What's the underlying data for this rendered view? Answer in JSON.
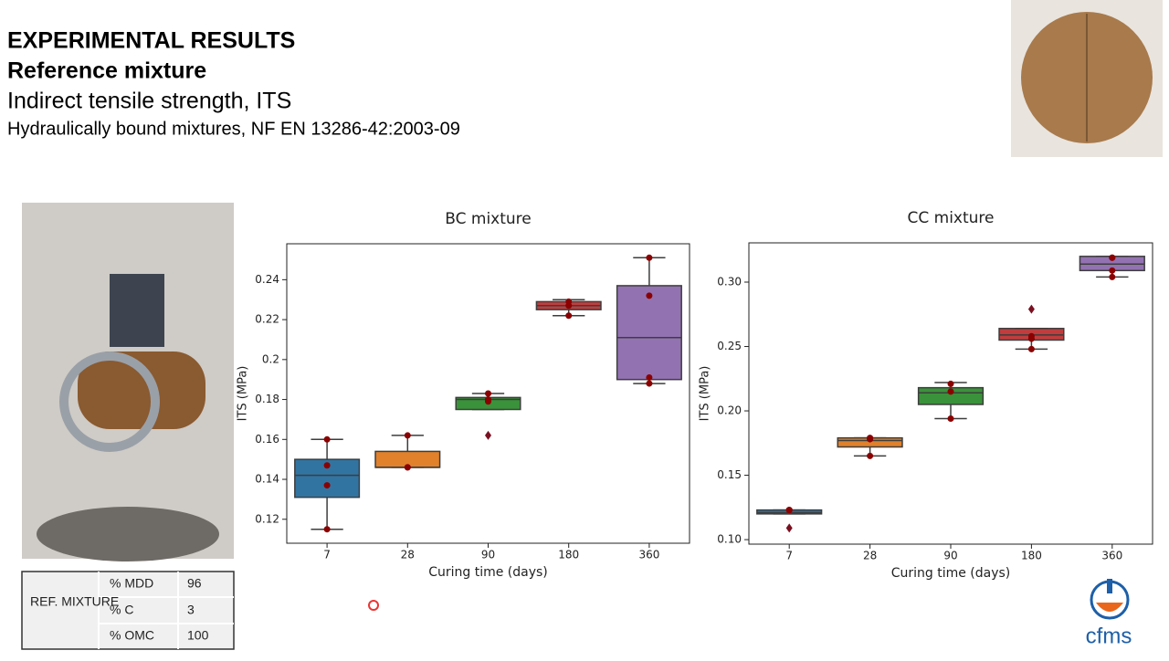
{
  "header": {
    "title": "EXPERIMENTAL RESULTS",
    "subtitle": "Reference mixture",
    "heading": "Indirect tensile strength, ITS",
    "standard": "Hydraulically bound mixtures, NF EN 13286-42:2003-09"
  },
  "table": {
    "label": "REF. MIXTURE",
    "rows": [
      [
        "% MDD",
        96
      ],
      [
        "% C",
        3
      ],
      [
        "% OMC",
        100
      ]
    ]
  },
  "logo": "cfms",
  "chart_data": [
    {
      "type": "box",
      "title": "BC mixture",
      "x_label": "Curing time (days)",
      "y_label": "ITS (MPa)",
      "categories": [
        "7",
        "28",
        "90",
        "180",
        "360"
      ],
      "colors": [
        "#3274a1",
        "#e1812c",
        "#3a923a",
        "#c03d3e",
        "#9372b2"
      ],
      "ylim": [
        0.108,
        0.258
      ],
      "yticks": [
        0.12,
        0.14,
        0.16,
        0.18,
        0.2,
        0.22,
        0.24
      ],
      "boxes": [
        {
          "whislo": 0.115,
          "q1": 0.131,
          "med": 0.142,
          "q3": 0.15,
          "whishi": 0.16,
          "points": [
            0.16,
            0.147,
            0.137,
            0.115
          ],
          "outliers": []
        },
        {
          "whislo": 0.146,
          "q1": 0.146,
          "med": 0.146,
          "q3": 0.154,
          "whishi": 0.162,
          "points": [
            0.162,
            0.146,
            0.146
          ],
          "outliers": []
        },
        {
          "whislo": 0.175,
          "q1": 0.175,
          "med": 0.18,
          "q3": 0.181,
          "whishi": 0.183,
          "points": [
            0.183,
            0.18,
            0.179
          ],
          "outliers": [
            0.162
          ]
        },
        {
          "whislo": 0.222,
          "q1": 0.225,
          "med": 0.227,
          "q3": 0.229,
          "whishi": 0.23,
          "points": [
            0.229,
            0.227,
            0.222
          ],
          "outliers": []
        },
        {
          "whislo": 0.188,
          "q1": 0.19,
          "med": 0.211,
          "q3": 0.237,
          "whishi": 0.251,
          "points": [
            0.251,
            0.232,
            0.191,
            0.188
          ],
          "outliers": []
        }
      ]
    },
    {
      "type": "box",
      "title": "CC mixture",
      "x_label": "Curing time (days)",
      "y_label": "ITS (MPa)",
      "categories": [
        "7",
        "28",
        "90",
        "180",
        "360"
      ],
      "colors": [
        "#3274a1",
        "#e1812c",
        "#3a923a",
        "#c03d3e",
        "#9372b2"
      ],
      "ylim": [
        0.0965,
        0.3305
      ],
      "yticks": [
        {
          "value": 0.1,
          "label": "0.10"
        },
        0.15,
        {
          "value": 0.2,
          "label": "0.20"
        },
        0.25,
        {
          "value": 0.3,
          "label": "0.30"
        }
      ],
      "boxes": [
        {
          "whislo": 0.12,
          "q1": 0.12,
          "med": 0.121,
          "q3": 0.123,
          "whishi": 0.123,
          "points": [
            0.123,
            0.123,
            0.123
          ],
          "outliers": [
            0.109
          ]
        },
        {
          "whislo": 0.165,
          "q1": 0.172,
          "med": 0.177,
          "q3": 0.179,
          "whishi": 0.179,
          "points": [
            0.179,
            0.178,
            0.165
          ],
          "outliers": []
        },
        {
          "whislo": 0.194,
          "q1": 0.205,
          "med": 0.214,
          "q3": 0.218,
          "whishi": 0.222,
          "points": [
            0.221,
            0.215,
            0.194
          ],
          "outliers": []
        },
        {
          "whislo": 0.248,
          "q1": 0.255,
          "med": 0.259,
          "q3": 0.264,
          "whishi": 0.264,
          "points": [
            0.258,
            0.256,
            0.248
          ],
          "outliers": [
            0.279
          ]
        },
        {
          "whislo": 0.304,
          "q1": 0.309,
          "med": 0.314,
          "q3": 0.32,
          "whishi": 0.32,
          "points": [
            0.319,
            0.319,
            0.309,
            0.304
          ],
          "outliers": []
        }
      ]
    }
  ]
}
